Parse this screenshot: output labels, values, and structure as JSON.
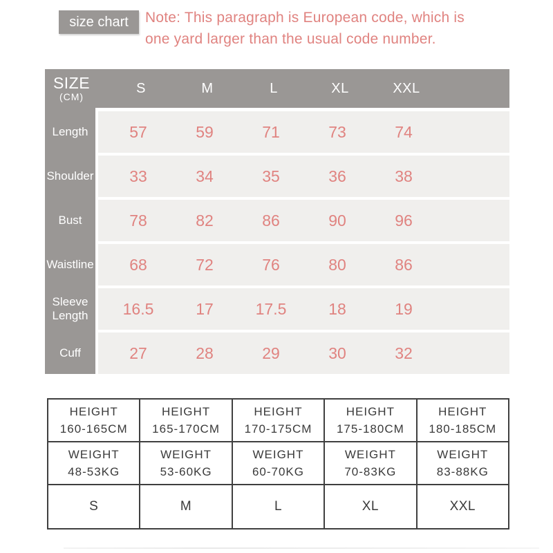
{
  "header": {
    "badge_label": "size chart",
    "note_line1": "Note: This paragraph is European code, which is",
    "note_line2": "one yard larger than the usual code number."
  },
  "main_table": {
    "corner": {
      "title": "SIZE",
      "unit": "(CM)"
    },
    "size_headers": [
      "S",
      "M",
      "L",
      "XL",
      "XXL"
    ],
    "rows": [
      {
        "label": "Length",
        "values": [
          "57",
          "59",
          "71",
          "73",
          "74"
        ]
      },
      {
        "label": "Shoulder",
        "values": [
          "33",
          "34",
          "35",
          "36",
          "38"
        ]
      },
      {
        "label": "Bust",
        "values": [
          "78",
          "82",
          "86",
          "90",
          "96"
        ]
      },
      {
        "label": "Waistline",
        "values": [
          "68",
          "72",
          "76",
          "80",
          "86"
        ]
      },
      {
        "label": "Sleeve Length",
        "values": [
          "16.5",
          "17",
          "17.5",
          "18",
          "19"
        ]
      },
      {
        "label": "Cuff",
        "values": [
          "27",
          "28",
          "29",
          "30",
          "32"
        ]
      }
    ]
  },
  "bottom_table": {
    "height_label": "HEIGHT",
    "weight_label": "WEIGHT",
    "heights": [
      "160-165CM",
      "165-170CM",
      "170-175CM",
      "175-180CM",
      "180-185CM"
    ],
    "weights": [
      "48-53KG",
      "53-60KG",
      "60-70KG",
      "70-83KG",
      "83-88KG"
    ],
    "sizes": [
      "S",
      "M",
      "L",
      "XL",
      "XXL"
    ]
  },
  "colors": {
    "accent_salmon": "#e08380",
    "header_gray": "#9a9795",
    "row_background": "#f0efed",
    "table_text_dark": "#3a3a3a"
  }
}
